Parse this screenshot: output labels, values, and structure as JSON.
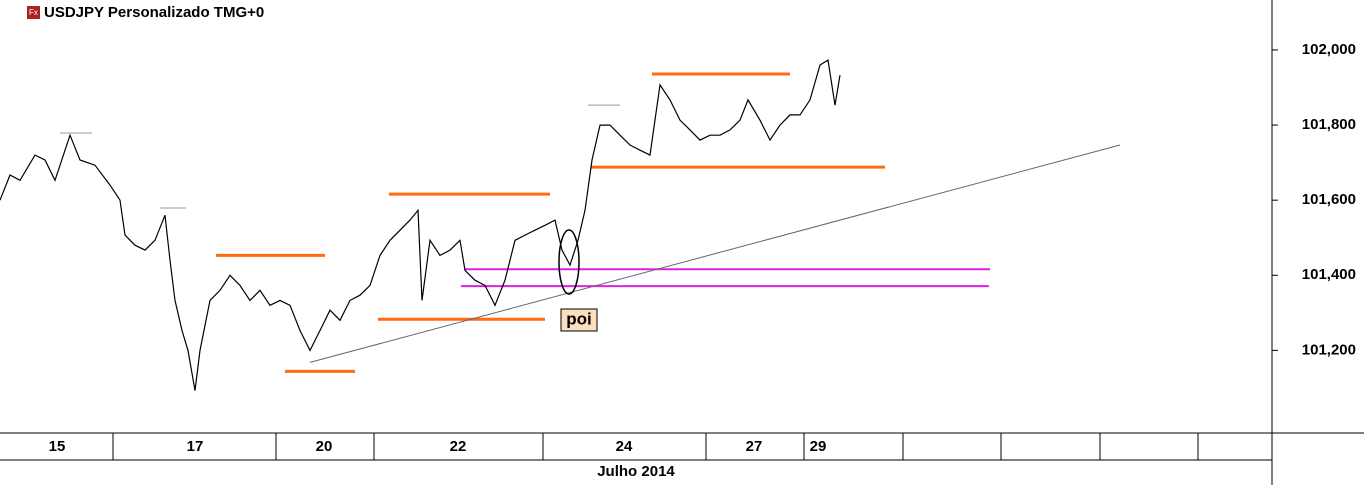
{
  "chart_data": {
    "type": "line",
    "title": "USDJPY Personalizado TMG+0",
    "x_label": "Julho 2014",
    "annotation": "poi",
    "color": "#000000",
    "x": [
      0,
      0.1,
      0.2,
      0.35,
      0.45,
      0.55,
      0.7,
      0.8,
      0.95,
      1.1,
      1.2,
      1.25,
      1.35,
      1.45,
      1.55,
      1.65,
      1.7,
      1.75,
      1.82,
      1.88,
      1.95,
      2.0,
      2.1,
      2.2,
      2.3,
      2.4,
      2.5,
      2.6,
      2.7,
      2.8,
      2.9,
      3.0,
      3.1,
      3.2,
      3.3,
      3.4,
      3.5,
      3.6,
      3.7,
      3.8,
      3.9,
      4.0,
      4.1,
      4.18,
      4.22,
      4.3,
      4.4,
      4.5,
      4.6,
      4.65,
      4.75,
      4.85,
      4.95,
      5.05,
      5.15,
      5.25,
      5.35,
      5.45,
      5.55,
      5.62,
      5.7,
      5.78,
      5.85,
      5.92,
      6.0,
      6.1,
      6.2,
      6.3,
      6.4,
      6.5,
      6.6,
      6.7,
      6.8,
      6.9,
      7.0,
      7.1,
      7.2,
      7.3,
      7.4,
      7.48,
      7.6,
      7.7,
      7.8,
      7.9,
      8.0,
      8.1,
      8.2,
      8.28,
      8.35,
      8.4
    ],
    "values": [
      101.6,
      101.667,
      101.653,
      101.72,
      101.707,
      101.653,
      101.773,
      101.707,
      101.693,
      101.64,
      101.6,
      101.507,
      101.48,
      101.467,
      101.493,
      101.56,
      101.44,
      101.333,
      101.253,
      101.2,
      101.093,
      101.2,
      101.333,
      101.36,
      101.4,
      101.373,
      101.333,
      101.36,
      101.32,
      101.333,
      101.32,
      101.253,
      101.2,
      101.253,
      101.307,
      101.28,
      101.333,
      101.347,
      101.373,
      101.453,
      101.493,
      101.52,
      101.547,
      101.573,
      101.333,
      101.493,
      101.453,
      101.467,
      101.493,
      101.413,
      101.387,
      101.373,
      101.32,
      101.387,
      101.493,
      101.507,
      101.52,
      101.533,
      101.547,
      101.467,
      101.427,
      101.493,
      101.573,
      101.707,
      101.8,
      101.8,
      101.773,
      101.747,
      101.733,
      101.72,
      101.907,
      101.867,
      101.813,
      101.787,
      101.76,
      101.773,
      101.773,
      101.787,
      101.813,
      101.867,
      101.813,
      101.76,
      101.8,
      101.827,
      101.827,
      101.867,
      101.96,
      101.973,
      101.853,
      101.933
    ],
    "xlim": [
      0,
      12.72
    ],
    "ylim": [
      100.98,
      102.133
    ],
    "xticks": [
      {
        "value": 0.57,
        "label": "15"
      },
      {
        "value": 1.95,
        "label": "17"
      },
      {
        "value": 3.24,
        "label": "20"
      },
      {
        "value": 4.58,
        "label": "22"
      },
      {
        "value": 6.24,
        "label": "24"
      },
      {
        "value": 7.54,
        "label": "27"
      },
      {
        "value": 8.18,
        "label": "29"
      }
    ],
    "yticks": [
      {
        "value": 101.2,
        "label": "101,200"
      },
      {
        "value": 101.4,
        "label": "101,400"
      },
      {
        "value": 101.6,
        "label": "101,600"
      },
      {
        "value": 101.8,
        "label": "101,800"
      },
      {
        "value": 102,
        "label": "102,000"
      }
    ],
    "segments": [
      {
        "x": [
          0.6,
          0.92
        ],
        "y": [
          101.779,
          101.779
        ],
        "color": "#999999"
      },
      {
        "x": [
          1.6,
          1.86
        ],
        "y": [
          101.579,
          101.579
        ],
        "color": "#999999"
      },
      {
        "x": [
          5.88,
          6.2
        ],
        "y": [
          101.853,
          101.853
        ],
        "color": "#999999"
      },
      {
        "x": [
          2.16,
          3.25
        ],
        "y": [
          101.453,
          101.453
        ],
        "color": "#ff6a13"
      },
      {
        "x": [
          3.89,
          5.5
        ],
        "y": [
          101.616,
          101.616
        ],
        "color": "#ff6a13"
      },
      {
        "x": [
          6.52,
          7.9
        ],
        "y": [
          101.936,
          101.936
        ],
        "color": "#ff6a13"
      },
      {
        "x": [
          5.91,
          8.85
        ],
        "y": [
          101.688,
          101.688
        ],
        "color": "#ff6a13"
      },
      {
        "x": [
          3.78,
          5.45
        ],
        "y": [
          101.283,
          101.283
        ],
        "color": "#ff6a13"
      },
      {
        "x": [
          2.85,
          3.55
        ],
        "y": [
          101.144,
          101.144
        ],
        "color": "#ff6a13"
      },
      {
        "x": [
          4.65,
          9.9
        ],
        "y": [
          101.416,
          101.416
        ],
        "color": "#e020e0"
      },
      {
        "x": [
          4.61,
          9.89
        ],
        "y": [
          101.371,
          101.371
        ],
        "color": "#e020e0"
      },
      {
        "x": [
          3.1,
          11.2
        ],
        "y": [
          101.168,
          101.747
        ],
        "color": "#666666"
      }
    ]
  }
}
